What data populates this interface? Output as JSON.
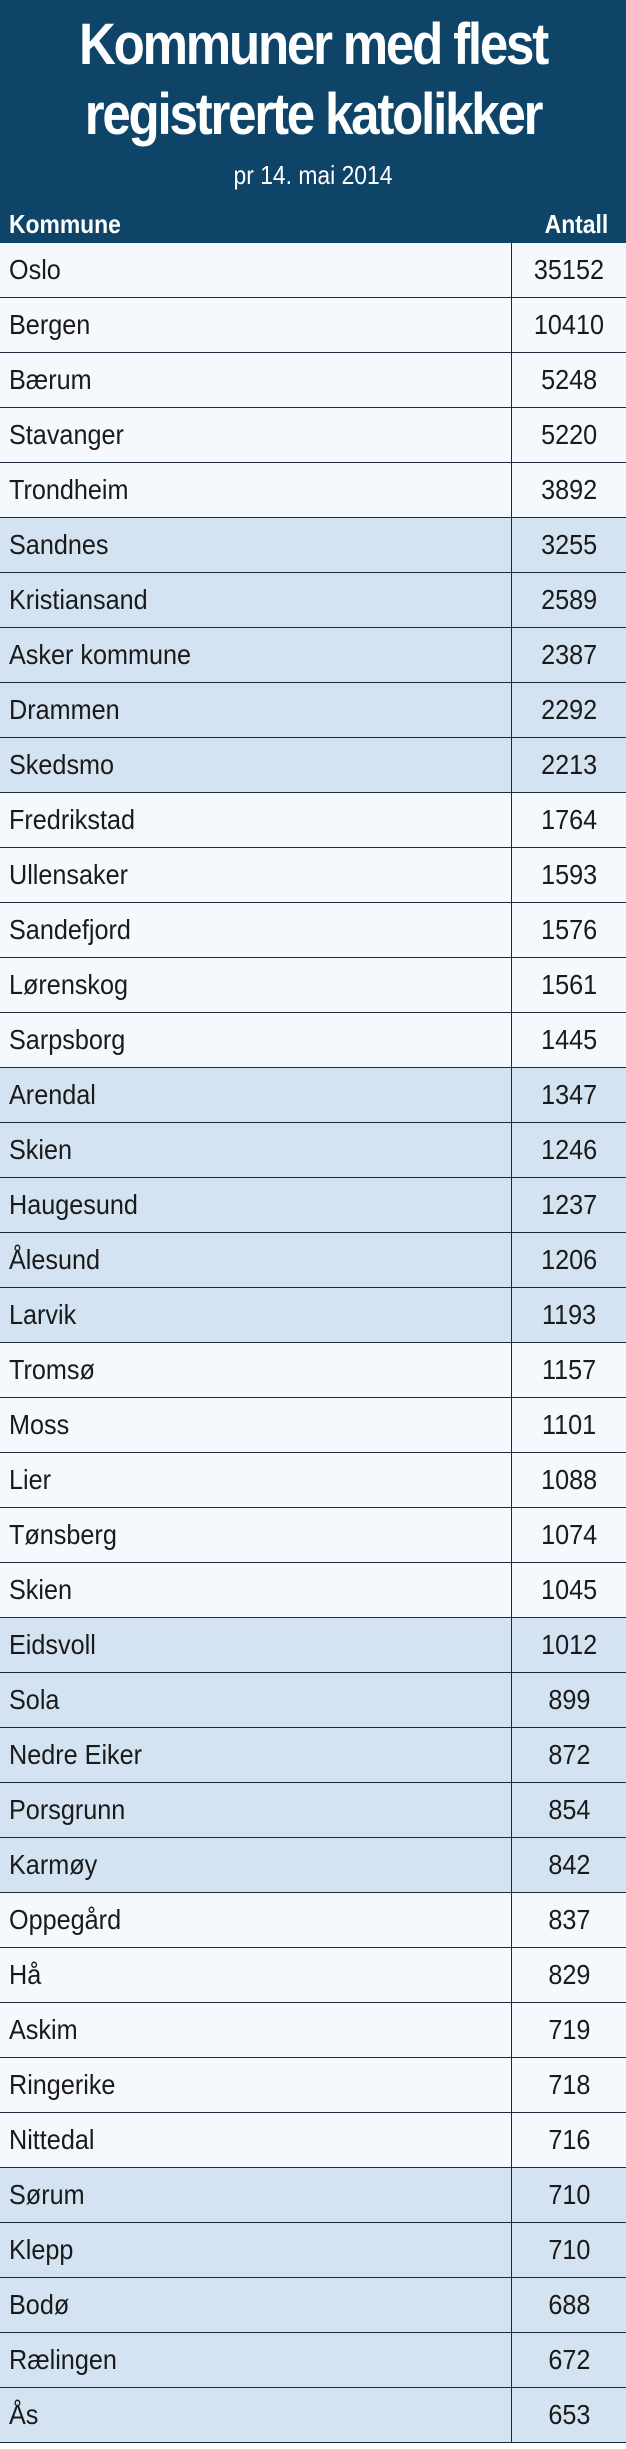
{
  "title_line1": "Kommuner med flest",
  "title_line2": "registrerte katolikker",
  "subtitle": "pr 14. mai 2014",
  "colors": {
    "header": "#0d4468",
    "row_light": "#f5f8fc",
    "row_blue": "#d4e3f1"
  },
  "chart_data": {
    "type": "table",
    "title": "Kommuner med flest registrerte katolikker",
    "subtitle": "pr 14. mai 2014",
    "columns": [
      "Kommune",
      "Antall"
    ],
    "rows": [
      {
        "kommune": "Oslo",
        "antall": 35152,
        "shade": "light"
      },
      {
        "kommune": "Bergen",
        "antall": 10410,
        "shade": "light"
      },
      {
        "kommune": "Bærum",
        "antall": 5248,
        "shade": "light"
      },
      {
        "kommune": "Stavanger",
        "antall": 5220,
        "shade": "light"
      },
      {
        "kommune": "Trondheim",
        "antall": 3892,
        "shade": "light"
      },
      {
        "kommune": "Sandnes",
        "antall": 3255,
        "shade": "blue"
      },
      {
        "kommune": "Kristiansand",
        "antall": 2589,
        "shade": "blue"
      },
      {
        "kommune": "Asker kommune",
        "antall": 2387,
        "shade": "blue"
      },
      {
        "kommune": "Drammen",
        "antall": 2292,
        "shade": "blue"
      },
      {
        "kommune": "Skedsmo",
        "antall": 2213,
        "shade": "blue"
      },
      {
        "kommune": "Fredrikstad",
        "antall": 1764,
        "shade": "light"
      },
      {
        "kommune": "Ullensaker",
        "antall": 1593,
        "shade": "light"
      },
      {
        "kommune": "Sandefjord",
        "antall": 1576,
        "shade": "light"
      },
      {
        "kommune": "Lørenskog",
        "antall": 1561,
        "shade": "light"
      },
      {
        "kommune": "Sarpsborg",
        "antall": 1445,
        "shade": "light"
      },
      {
        "kommune": "Arendal",
        "antall": 1347,
        "shade": "blue"
      },
      {
        "kommune": "Skien",
        "antall": 1246,
        "shade": "blue"
      },
      {
        "kommune": "Haugesund",
        "antall": 1237,
        "shade": "blue"
      },
      {
        "kommune": "Ålesund",
        "antall": 1206,
        "shade": "blue"
      },
      {
        "kommune": "Larvik",
        "antall": 1193,
        "shade": "blue"
      },
      {
        "kommune": "Tromsø",
        "antall": 1157,
        "shade": "light"
      },
      {
        "kommune": "Moss",
        "antall": 1101,
        "shade": "light"
      },
      {
        "kommune": "Lier",
        "antall": 1088,
        "shade": "light"
      },
      {
        "kommune": "Tønsberg",
        "antall": 1074,
        "shade": "light"
      },
      {
        "kommune": "Skien",
        "antall": 1045,
        "shade": "light"
      },
      {
        "kommune": "Eidsvoll",
        "antall": 1012,
        "shade": "blue"
      },
      {
        "kommune": "Sola",
        "antall": 899,
        "shade": "blue"
      },
      {
        "kommune": "Nedre Eiker",
        "antall": 872,
        "shade": "blue"
      },
      {
        "kommune": "Porsgrunn",
        "antall": 854,
        "shade": "blue"
      },
      {
        "kommune": "Karmøy",
        "antall": 842,
        "shade": "blue"
      },
      {
        "kommune": "Oppegård",
        "antall": 837,
        "shade": "light"
      },
      {
        "kommune": "Hå",
        "antall": 829,
        "shade": "light"
      },
      {
        "kommune": "Askim",
        "antall": 719,
        "shade": "light"
      },
      {
        "kommune": "Ringerike",
        "antall": 718,
        "shade": "light"
      },
      {
        "kommune": "Nittedal",
        "antall": 716,
        "shade": "light"
      },
      {
        "kommune": "Sørum",
        "antall": 710,
        "shade": "blue"
      },
      {
        "kommune": "Klepp",
        "antall": 710,
        "shade": "blue"
      },
      {
        "kommune": "Bodø",
        "antall": 688,
        "shade": "blue"
      },
      {
        "kommune": "Rælingen",
        "antall": 672,
        "shade": "blue"
      },
      {
        "kommune": "Ås",
        "antall": 653,
        "shade": "blue"
      }
    ]
  }
}
